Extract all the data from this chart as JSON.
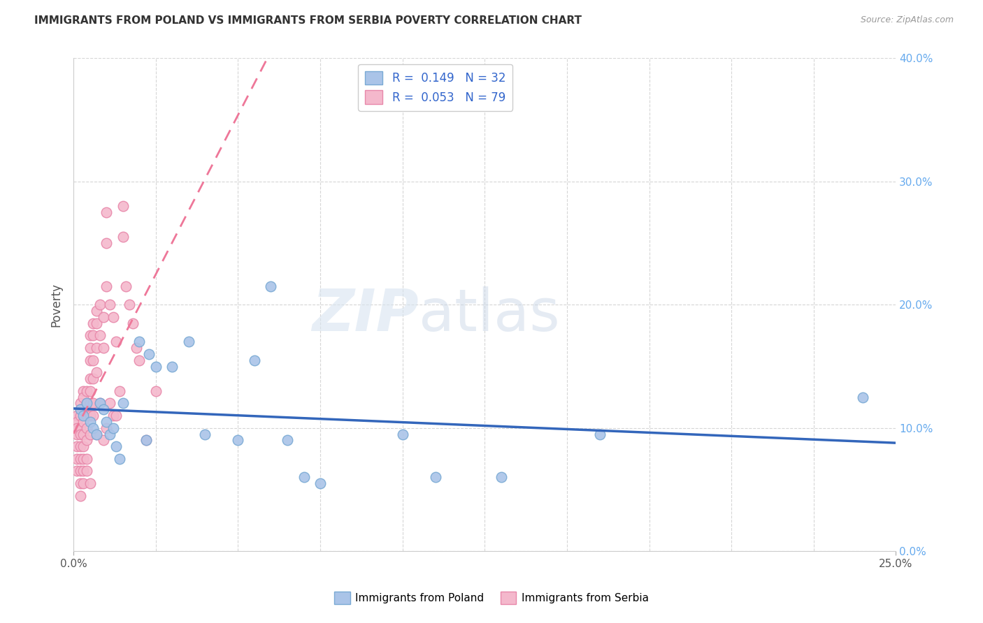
{
  "title": "IMMIGRANTS FROM POLAND VS IMMIGRANTS FROM SERBIA POVERTY CORRELATION CHART",
  "source": "Source: ZipAtlas.com",
  "ylabel": "Poverty",
  "xlim": [
    0.0,
    0.25
  ],
  "ylim": [
    0.0,
    0.4
  ],
  "xticks": [
    0.0,
    0.25
  ],
  "yticks": [
    0.0,
    0.1,
    0.2,
    0.3,
    0.4
  ],
  "xticklabels": [
    "0.0%",
    "25.0%"
  ],
  "yticklabels_right": [
    "0.0%",
    "10.0%",
    "20.0%",
    "30.0%",
    "40.0%"
  ],
  "poland_color": "#aac4e8",
  "poland_edge_color": "#7aaad4",
  "serbia_color": "#f4b8cc",
  "serbia_edge_color": "#e888aa",
  "poland_line_color": "#3366bb",
  "serbia_line_color": "#ee7799",
  "legend_r_poland": "R =  0.149   N = 32",
  "legend_r_serbia": "R =  0.053   N = 79",
  "watermark_zip": "ZIP",
  "watermark_atlas": "atlas",
  "poland_x": [
    0.002,
    0.003,
    0.004,
    0.005,
    0.006,
    0.007,
    0.008,
    0.009,
    0.01,
    0.011,
    0.012,
    0.013,
    0.014,
    0.015,
    0.02,
    0.022,
    0.023,
    0.025,
    0.03,
    0.035,
    0.04,
    0.05,
    0.055,
    0.06,
    0.065,
    0.07,
    0.075,
    0.1,
    0.11,
    0.13,
    0.16,
    0.24
  ],
  "poland_y": [
    0.115,
    0.11,
    0.12,
    0.105,
    0.1,
    0.095,
    0.12,
    0.115,
    0.105,
    0.095,
    0.1,
    0.085,
    0.075,
    0.12,
    0.17,
    0.09,
    0.16,
    0.15,
    0.15,
    0.17,
    0.095,
    0.09,
    0.155,
    0.215,
    0.09,
    0.06,
    0.055,
    0.095,
    0.06,
    0.06,
    0.095,
    0.125
  ],
  "serbia_x": [
    0.001,
    0.001,
    0.001,
    0.001,
    0.001,
    0.001,
    0.001,
    0.002,
    0.002,
    0.002,
    0.002,
    0.002,
    0.002,
    0.002,
    0.002,
    0.002,
    0.002,
    0.003,
    0.003,
    0.003,
    0.003,
    0.003,
    0.003,
    0.003,
    0.003,
    0.003,
    0.004,
    0.004,
    0.004,
    0.004,
    0.004,
    0.004,
    0.004,
    0.005,
    0.005,
    0.005,
    0.005,
    0.005,
    0.005,
    0.005,
    0.005,
    0.005,
    0.006,
    0.006,
    0.006,
    0.006,
    0.006,
    0.006,
    0.007,
    0.007,
    0.007,
    0.007,
    0.007,
    0.008,
    0.008,
    0.008,
    0.009,
    0.009,
    0.009,
    0.01,
    0.01,
    0.01,
    0.01,
    0.011,
    0.011,
    0.012,
    0.012,
    0.013,
    0.013,
    0.014,
    0.015,
    0.015,
    0.016,
    0.017,
    0.018,
    0.019,
    0.02,
    0.022,
    0.025
  ],
  "serbia_y": [
    0.11,
    0.105,
    0.1,
    0.095,
    0.085,
    0.075,
    0.065,
    0.12,
    0.115,
    0.11,
    0.1,
    0.095,
    0.085,
    0.075,
    0.065,
    0.055,
    0.045,
    0.13,
    0.125,
    0.115,
    0.105,
    0.095,
    0.085,
    0.075,
    0.065,
    0.055,
    0.13,
    0.12,
    0.11,
    0.1,
    0.09,
    0.075,
    0.065,
    0.175,
    0.165,
    0.155,
    0.14,
    0.13,
    0.12,
    0.11,
    0.095,
    0.055,
    0.185,
    0.175,
    0.155,
    0.14,
    0.12,
    0.11,
    0.195,
    0.185,
    0.165,
    0.145,
    0.095,
    0.2,
    0.175,
    0.12,
    0.19,
    0.165,
    0.09,
    0.275,
    0.25,
    0.215,
    0.1,
    0.2,
    0.12,
    0.19,
    0.11,
    0.17,
    0.11,
    0.13,
    0.28,
    0.255,
    0.215,
    0.2,
    0.185,
    0.165,
    0.155,
    0.09,
    0.13
  ],
  "background_color": "#ffffff",
  "grid_color": "#cccccc",
  "marker_size": 110
}
